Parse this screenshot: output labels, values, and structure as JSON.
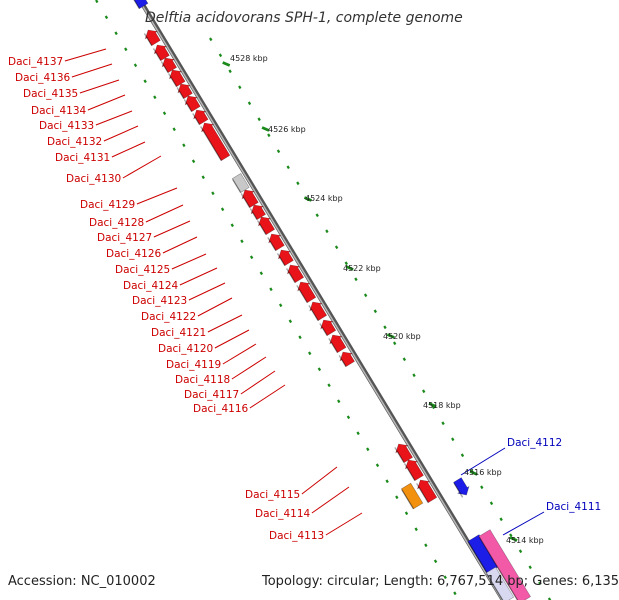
{
  "title": "Delftia acidovorans SPH-1, complete genome",
  "accession_text": "Accession: NC_010002",
  "stats_text": "Topology: circular; Length: 6,767,514 bp; Genes: 6,135",
  "ruler_labels": [
    "4528 kbp",
    "4526 kbp",
    "4524 kbp",
    "4522 kbp",
    "4520 kbp",
    "4518 kbp",
    "4516 kbp",
    "4514 kbp"
  ],
  "genes_left": [
    "Daci_4137",
    "Daci_4136",
    "Daci_4135",
    "Daci_4134",
    "Daci_4133",
    "Daci_4132",
    "Daci_4131",
    "Daci_4130",
    "Daci_4129",
    "Daci_4128",
    "Daci_4127",
    "Daci_4126",
    "Daci_4125",
    "Daci_4124",
    "Daci_4123",
    "Daci_4122",
    "Daci_4121",
    "Daci_4120",
    "Daci_4119",
    "Daci_4118",
    "Daci_4117",
    "Daci_4116",
    "Daci_4115",
    "Daci_4114",
    "Daci_4113"
  ],
  "genes_right": [
    "Daci_4112",
    "Daci_4111"
  ],
  "colors": {
    "reverse_strand_gene": "#e8141a",
    "forward_strand_gene": "#1d1de8",
    "grey_gene": "#c8c8c8",
    "orange_gene": "#f2900f",
    "pink_gene": "#f25aa8",
    "backbone": "#8a8a8a",
    "ticks": "#1a8a1a"
  }
}
